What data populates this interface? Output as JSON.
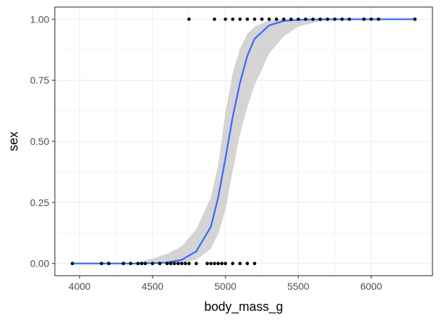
{
  "chart_data": {
    "type": "scatter",
    "title": "",
    "xlabel": "body_mass_g",
    "ylabel": "sex",
    "xlim": [
      3830,
      6420
    ],
    "ylim": [
      -0.05,
      1.05
    ],
    "x_ticks": [
      4000,
      4500,
      5000,
      5500,
      6000
    ],
    "x_tick_labels": [
      "4000",
      "4500",
      "5000",
      "5500",
      "6000"
    ],
    "y_ticks": [
      0,
      0.25,
      0.5,
      0.75,
      1
    ],
    "y_tick_labels": [
      "0.00",
      "0.25",
      "0.50",
      "0.75",
      "1.00"
    ],
    "grid": true,
    "theme": "black-and-white panel with light grey major and minor gridlines",
    "points_color": "#000000",
    "fit_line_color": "#3366FF",
    "ribbon_color": "#CCCCCC",
    "series": [
      {
        "kind": "points",
        "x": [
          3950,
          4150,
          4200,
          4300,
          4350,
          4400,
          4425,
          4450,
          4500,
          4550,
          4600,
          4625,
          4650,
          4675,
          4700,
          4725,
          4750,
          4800,
          4875,
          4900,
          4925,
          4950,
          4975,
          5000,
          5050,
          5100,
          5150,
          5200
        ],
        "y": [
          0,
          0,
          0,
          0,
          0,
          0,
          0,
          0,
          0,
          0,
          0,
          0,
          0,
          0,
          0,
          0,
          0,
          0,
          0,
          0,
          0,
          0,
          0,
          0,
          0,
          0,
          0,
          0
        ]
      },
      {
        "kind": "points",
        "x": [
          4750,
          4925,
          5000,
          5050,
          5100,
          5150,
          5200,
          5250,
          5300,
          5350,
          5400,
          5450,
          5500,
          5550,
          5600,
          5650,
          5700,
          5750,
          5800,
          5850,
          5950,
          6000,
          6050,
          6300
        ],
        "y": [
          1,
          1,
          1,
          1,
          1,
          1,
          1,
          1,
          1,
          1,
          1,
          1,
          1,
          1,
          1,
          1,
          1,
          1,
          1,
          1,
          1,
          1,
          1,
          1
        ]
      },
      {
        "kind": "line",
        "x": [
          3950,
          4000,
          4100,
          4200,
          4300,
          4400,
          4500,
          4600,
          4700,
          4800,
          4900,
          4950,
          5000,
          5050,
          5100,
          5150,
          5200,
          5300,
          5400,
          5500,
          5600,
          5700,
          5800,
          5900,
          6000,
          6100,
          6200,
          6300
        ],
        "y": [
          0.0,
          0.0,
          0.0,
          0.0,
          0.0,
          0.0,
          0.001,
          0.004,
          0.015,
          0.05,
          0.15,
          0.27,
          0.43,
          0.6,
          0.74,
          0.85,
          0.92,
          0.975,
          0.993,
          0.998,
          0.999,
          1.0,
          1.0,
          1.0,
          1.0,
          1.0,
          1.0,
          1.0
        ]
      },
      {
        "kind": "ribbon",
        "x": [
          3950,
          4000,
          4100,
          4200,
          4300,
          4400,
          4500,
          4600,
          4700,
          4800,
          4900,
          4950,
          5000,
          5050,
          5100,
          5150,
          5200,
          5300,
          5400,
          5500,
          5600,
          5700,
          5800,
          5900,
          6000,
          6100,
          6200,
          6300
        ],
        "ymin": [
          0.0,
          0.0,
          0.0,
          0.0,
          0.0,
          0.0,
          0.0,
          0.0,
          0.003,
          0.015,
          0.06,
          0.12,
          0.22,
          0.38,
          0.53,
          0.64,
          0.73,
          0.86,
          0.93,
          0.97,
          0.985,
          0.995,
          1.0,
          1.0,
          1.0,
          1.0,
          1.0,
          1.0
        ],
        "ymax": [
          0.0,
          0.0,
          0.0,
          0.0,
          0.0,
          0.005,
          0.02,
          0.04,
          0.07,
          0.14,
          0.27,
          0.4,
          0.62,
          0.78,
          0.88,
          0.94,
          0.97,
          0.995,
          1.0,
          1.0,
          1.0,
          1.0,
          1.0,
          1.0,
          1.0,
          1.0,
          1.0,
          1.0
        ]
      }
    ]
  }
}
